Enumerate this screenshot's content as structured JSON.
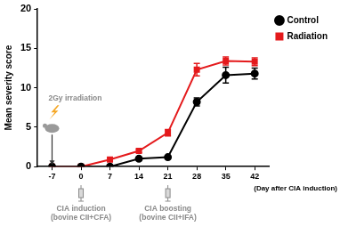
{
  "chart_data": {
    "type": "line",
    "y_label": "Mean severity score",
    "x_label": "(Day after CIA induction)",
    "categories": [
      "-7",
      "0",
      "7",
      "14",
      "21",
      "28",
      "35",
      "42"
    ],
    "series": [
      {
        "name": "Control",
        "color": "#000000",
        "marker": "circle",
        "line_style": "solid",
        "values": [
          0,
          0,
          0,
          1.0,
          1.2,
          8.2,
          11.6,
          11.8
        ],
        "errors": [
          0,
          0,
          0,
          0.2,
          0.2,
          0.5,
          1.0,
          0.7
        ]
      },
      {
        "name": "Radiation",
        "color": "#e41a1c",
        "marker": "square",
        "line_style": "solid",
        "values": [
          0,
          0,
          0.9,
          2.0,
          4.3,
          12.3,
          13.4,
          13.3
        ],
        "errors": [
          0,
          0,
          0.2,
          0.2,
          0.4,
          0.8,
          0.5,
          0.5
        ]
      }
    ],
    "ylim": [
      0,
      20
    ],
    "yticks": [
      0,
      5,
      10,
      15,
      20
    ],
    "grid": false,
    "legend": "top right",
    "annotations": [
      {
        "x": -7,
        "position": "above",
        "text": [
          "2Gy irradiation"
        ]
      },
      {
        "x": 0,
        "position": "below",
        "text": [
          "CIA induction",
          "(bovine CII+CFA)"
        ]
      },
      {
        "x": 21,
        "position": "below",
        "text": [
          "CIA boosting",
          "(bovine CII+IFA)"
        ]
      }
    ]
  }
}
